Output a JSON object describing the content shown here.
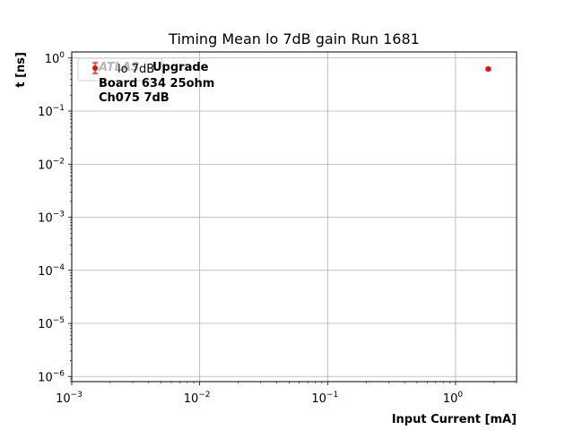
{
  "chart_data": {
    "type": "scatter",
    "title": "Timing Mean lo 7dB gain Run 1681",
    "xlabel": "Input Current [mA]",
    "ylabel": "t [ns]",
    "xscale": "log",
    "yscale": "log",
    "xlim": [
      0.001,
      3
    ],
    "ylim": [
      8e-07,
      1.3
    ],
    "grid": true,
    "x_ticks": [
      {
        "value": 0.001,
        "base": "10",
        "exp": "−3"
      },
      {
        "value": 0.01,
        "base": "10",
        "exp": "−2"
      },
      {
        "value": 0.1,
        "base": "10",
        "exp": "−1"
      },
      {
        "value": 1,
        "base": "10",
        "exp": "0"
      }
    ],
    "y_ticks": [
      {
        "value": 1e-06,
        "base": "10",
        "exp": "−6"
      },
      {
        "value": 1e-05,
        "base": "10",
        "exp": "−5"
      },
      {
        "value": 0.0001,
        "base": "10",
        "exp": "−4"
      },
      {
        "value": 0.001,
        "base": "10",
        "exp": "−3"
      },
      {
        "value": 0.01,
        "base": "10",
        "exp": "−2"
      },
      {
        "value": 0.1,
        "base": "10",
        "exp": "−1"
      },
      {
        "value": 1,
        "base": "10",
        "exp": "0"
      }
    ],
    "series": [
      {
        "name": "lo 7dB",
        "color": "#ff0000",
        "marker": "circle",
        "points": [
          {
            "x": 1.8,
            "y": 0.62,
            "yerr": 0.04
          }
        ]
      }
    ],
    "legend": {
      "placement": "top-left"
    },
    "annotation": {
      "ghost": "ATLAS",
      "lines": [
        "Upgrade",
        "Board 634 25ohm",
        "Ch075 7dB"
      ]
    }
  }
}
